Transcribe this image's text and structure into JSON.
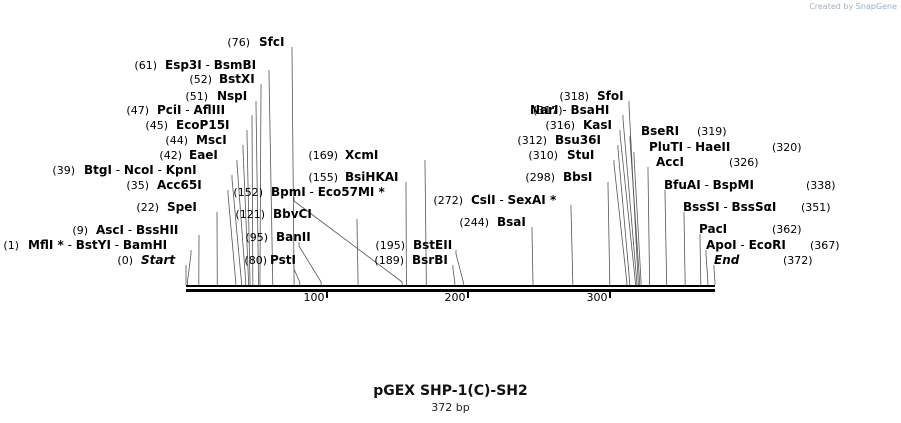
{
  "watermark": {
    "prefix": "Created by",
    "brand": "SnapGene"
  },
  "title": "pGEX SHP-1(C)-SH2",
  "subtitle": "372 bp",
  "length": 372,
  "ruler_ticks": [
    "100",
    "200",
    "300"
  ],
  "sites": [
    {
      "pos": "(76)",
      "parts": [
        "SfcI"
      ],
      "bp": 76
    },
    {
      "pos": "(61)",
      "parts": [
        "Esp3I",
        "  - ",
        "BsmBI"
      ],
      "bp": 61
    },
    {
      "pos": "(52)",
      "parts": [
        "BstXI"
      ],
      "bp": 52
    },
    {
      "pos": "(51)",
      "parts": [
        "NspI"
      ],
      "bp": 51
    },
    {
      "pos": "(47)",
      "parts": [
        "PciI",
        "  - ",
        "AflIII"
      ],
      "bp": 47
    },
    {
      "pos": "(45)",
      "parts": [
        "EcoP15I"
      ],
      "bp": 45
    },
    {
      "pos": "(44)",
      "parts": [
        "MscI"
      ],
      "bp": 44
    },
    {
      "pos": "(42)",
      "parts": [
        "EaeI"
      ],
      "bp": 42
    },
    {
      "pos": "(39)",
      "parts": [
        "BtgI",
        "  - ",
        "NcoI",
        "  - ",
        "KpnI"
      ],
      "bp": 39
    },
    {
      "pos": "(35)",
      "parts": [
        "Acc65I"
      ],
      "bp": 35
    },
    {
      "pos": "(22)",
      "parts": [
        "SpeI"
      ],
      "bp": 22
    },
    {
      "pos": "(9)",
      "parts": [
        "AscI",
        "  - ",
        "BssHII"
      ],
      "bp": 9
    },
    {
      "pos": "(1)",
      "parts": [
        "MflI *",
        "  - ",
        "BstYI",
        "  - ",
        "BamHI"
      ],
      "bp": 1
    },
    {
      "pos": "(0)",
      "parts": [
        "Start"
      ],
      "bp": 0,
      "italic": true
    },
    {
      "pos": "(152)",
      "parts": [
        "BpmI",
        "  - ",
        "Eco57MI *"
      ],
      "bp": 152
    },
    {
      "pos": "(121)",
      "parts": [
        "BbvCI"
      ],
      "bp": 121
    },
    {
      "pos": "(95)",
      "parts": [
        "BanII"
      ],
      "bp": 95
    },
    {
      "pos": "(80)",
      "parts": [
        "PstI"
      ],
      "bp": 80
    },
    {
      "pos": "(169)",
      "parts": [
        "XcmI"
      ],
      "bp": 169
    },
    {
      "pos": "(155)",
      "parts": [
        "BsiHKAI"
      ],
      "bp": 155
    },
    {
      "pos": "(195)",
      "parts": [
        "BstEII"
      ],
      "bp": 195
    },
    {
      "pos": "(189)",
      "parts": [
        "BsrBI"
      ],
      "bp": 189
    },
    {
      "pos": "(272)",
      "parts": [
        "CslI",
        "  - ",
        "SexAI *"
      ],
      "bp": 272
    },
    {
      "pos": "(244)",
      "parts": [
        "BsaI"
      ],
      "bp": 244
    },
    {
      "pos": "(318)",
      "parts": [
        "SfoI"
      ],
      "bp": 318
    },
    {
      "pos": "(317)",
      "parts": [
        "NarI",
        "  - ",
        "BsaHI"
      ],
      "bp": 317
    },
    {
      "pos": "(316)",
      "parts": [
        "KasI"
      ],
      "bp": 316
    },
    {
      "pos": "(312)",
      "parts": [
        "Bsu36I"
      ],
      "bp": 312
    },
    {
      "pos": "(310)",
      "parts": [
        "StuI"
      ],
      "bp": 310
    },
    {
      "pos": "(298)",
      "parts": [
        "BbsI"
      ],
      "bp": 298
    },
    {
      "pos": "(319)",
      "parts": [
        "BseRI"
      ],
      "bp": 319
    },
    {
      "pos": "(320)",
      "parts": [
        "PluTI",
        "  - ",
        "HaeII"
      ],
      "bp": 320
    },
    {
      "pos": "(326)",
      "parts": [
        "AccI"
      ],
      "bp": 326
    },
    {
      "pos": "(338)",
      "parts": [
        "BfuAI",
        "  - ",
        "BspMI"
      ],
      "bp": 338
    },
    {
      "pos": "(351)",
      "parts": [
        "BssSI",
        "  - ",
        "BssSαI"
      ],
      "bp": 351
    },
    {
      "pos": "(362)",
      "parts": [
        "PacI"
      ],
      "bp": 362
    },
    {
      "pos": "(367)",
      "parts": [
        "ApoI",
        "  - ",
        "EcoRI"
      ],
      "bp": 367
    },
    {
      "pos": "(372)",
      "parts": [
        "End"
      ],
      "bp": 372,
      "italic": true
    }
  ]
}
